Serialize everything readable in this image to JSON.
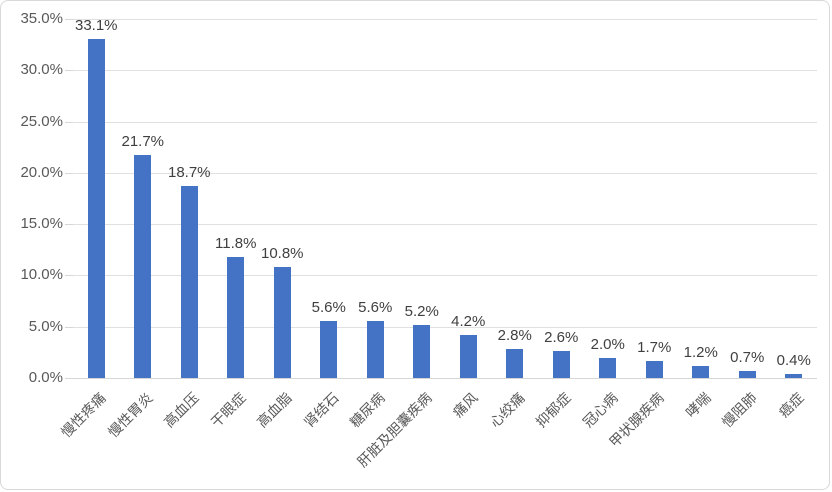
{
  "chart_data": {
    "type": "bar",
    "title": "",
    "xlabel": "",
    "ylabel": "",
    "categories": [
      "慢性疼痛",
      "慢性胃炎",
      "高血压",
      "干眼症",
      "高血脂",
      "肾结石",
      "糖尿病",
      "肝脏及胆囊疾病",
      "痛风",
      "心绞痛",
      "抑郁症",
      "冠心病",
      "甲状腺疾病",
      "哮喘",
      "慢阻肺",
      "癌症"
    ],
    "values": [
      33.1,
      21.7,
      18.7,
      11.8,
      10.8,
      5.6,
      5.6,
      5.2,
      4.2,
      2.8,
      2.6,
      2.0,
      1.7,
      1.2,
      0.7,
      0.4
    ],
    "data_labels": [
      "33.1%",
      "21.7%",
      "18.7%",
      "11.8%",
      "10.8%",
      "5.6%",
      "5.6%",
      "5.2%",
      "4.2%",
      "2.8%",
      "2.6%",
      "2.0%",
      "1.7%",
      "1.2%",
      "0.7%",
      "0.4%"
    ],
    "ylim": [
      0,
      35
    ],
    "ytick_step": 5,
    "ytick_labels": [
      "0.0%",
      "5.0%",
      "10.0%",
      "15.0%",
      "20.0%",
      "25.0%",
      "30.0%",
      "35.0%"
    ],
    "grid": true,
    "legend": false,
    "bar_color": "#4472C4",
    "gridline_color": "#E0E0E0",
    "axis_text_color": "#595959",
    "data_label_color": "#404040"
  }
}
